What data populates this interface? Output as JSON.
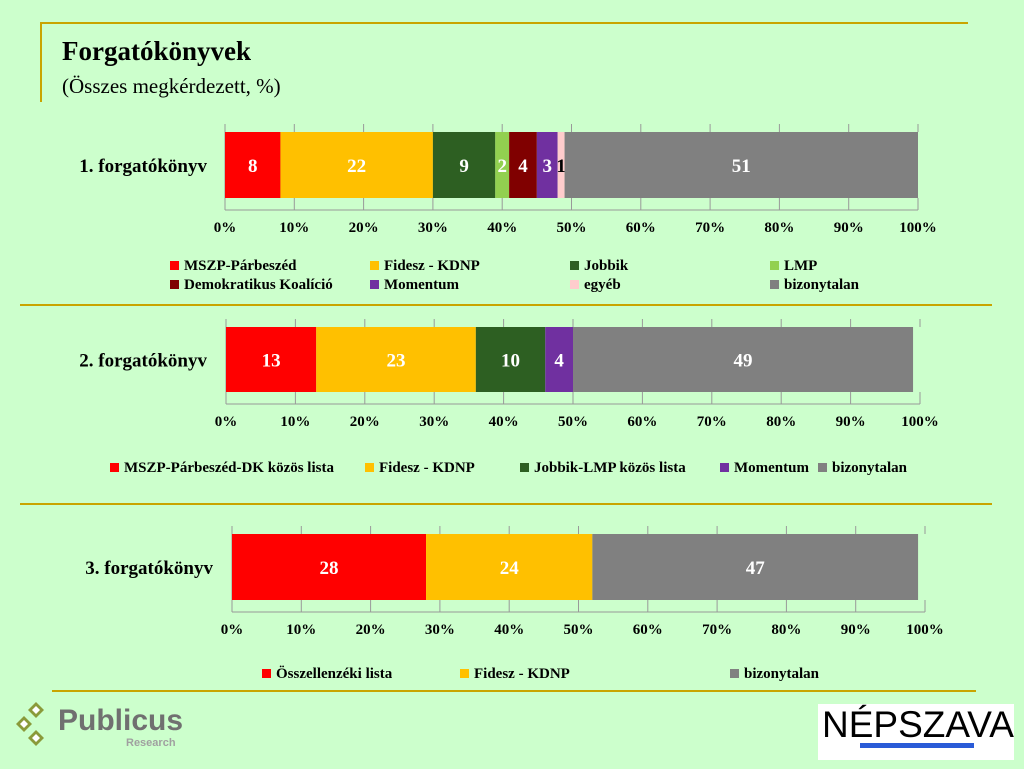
{
  "header": {
    "title": "Forgatókönyvek",
    "subtitle": "(Összes megkérdezett, %)"
  },
  "colors": {
    "red": "#ff0000",
    "orange": "#ffc000",
    "darkgreen": "#2d5f22",
    "lightgreen": "#92d050",
    "darkred": "#800000",
    "purple": "#7030a0",
    "pink": "#ffcccc",
    "gray": "#808080"
  },
  "chart_data": [
    {
      "type": "bar",
      "orientation": "horizontal-stacked",
      "category": "1. forgatókönyv",
      "xlim": [
        0,
        100
      ],
      "ticks": [
        "0%",
        "10%",
        "20%",
        "30%",
        "40%",
        "50%",
        "60%",
        "70%",
        "80%",
        "90%",
        "100%"
      ],
      "series": [
        {
          "name": "MSZP-Párbeszéd",
          "value": 8,
          "color": "#ff0000"
        },
        {
          "name": "Fidesz - KDNP",
          "value": 22,
          "color": "#ffc000"
        },
        {
          "name": "Jobbik",
          "value": 9,
          "color": "#2d5f22"
        },
        {
          "name": "LMP",
          "value": 2,
          "color": "#92d050"
        },
        {
          "name": "Demokratikus Koalíció",
          "value": 4,
          "color": "#800000"
        },
        {
          "name": "Momentum",
          "value": 3,
          "color": "#7030a0"
        },
        {
          "name": "egyéb",
          "value": 1,
          "color": "#ffcccc",
          "label_color": "#000"
        },
        {
          "name": "bizonytalan",
          "value": 51,
          "color": "#808080"
        }
      ]
    },
    {
      "type": "bar",
      "orientation": "horizontal-stacked",
      "category": "2. forgatókönyv",
      "xlim": [
        0,
        100
      ],
      "ticks": [
        "0%",
        "10%",
        "20%",
        "30%",
        "40%",
        "50%",
        "60%",
        "70%",
        "80%",
        "90%",
        "100%"
      ],
      "series": [
        {
          "name": "MSZP-Párbeszéd-DK közös lista",
          "value": 13,
          "color": "#ff0000"
        },
        {
          "name": "Fidesz - KDNP",
          "value": 23,
          "color": "#ffc000"
        },
        {
          "name": "Jobbik-LMP közös lista",
          "value": 10,
          "color": "#2d5f22"
        },
        {
          "name": "Momentum",
          "value": 4,
          "color": "#7030a0"
        },
        {
          "name": "bizonytalan",
          "value": 49,
          "color": "#808080"
        }
      ]
    },
    {
      "type": "bar",
      "orientation": "horizontal-stacked",
      "category": "3. forgatókönyv",
      "xlim": [
        0,
        100
      ],
      "ticks": [
        "0%",
        "10%",
        "20%",
        "30%",
        "40%",
        "50%",
        "60%",
        "70%",
        "80%",
        "90%",
        "100%"
      ],
      "series": [
        {
          "name": "Összellenzéki lista",
          "value": 28,
          "color": "#ff0000"
        },
        {
          "name": "Fidesz - KDNP",
          "value": 24,
          "color": "#ffc000"
        },
        {
          "name": "bizonytalan",
          "value": 47,
          "color": "#808080"
        }
      ]
    }
  ],
  "logos": {
    "publicus": "Publicus",
    "publicus_sub": "Research",
    "nepszava": "NÉPSZAVA"
  }
}
